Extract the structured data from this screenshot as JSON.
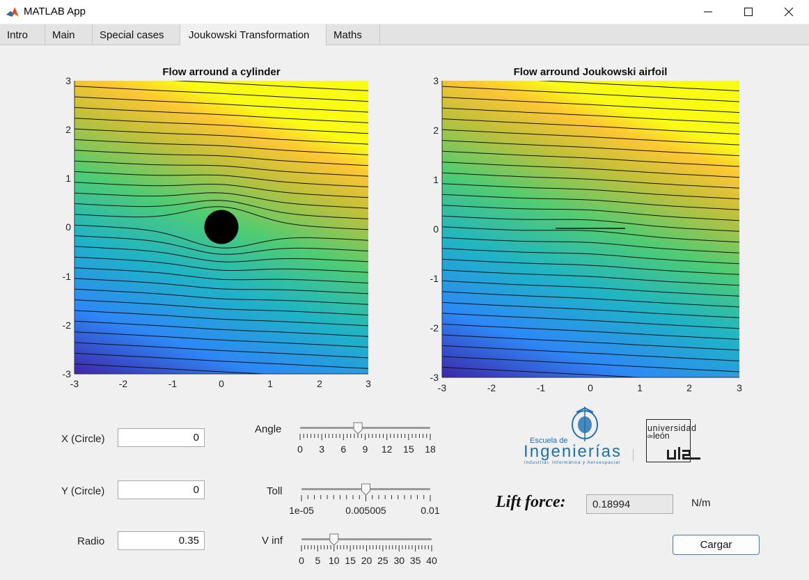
{
  "window": {
    "title": "MATLAB App"
  },
  "tabs": [
    "Intro",
    "Main",
    "Special cases",
    "Joukowski Transformation",
    "Maths"
  ],
  "active_tab": "Joukowski Transformation",
  "plot_left": {
    "title": "Flow arround a cylinder",
    "xticks": [
      "-3",
      "-2",
      "-1",
      "0",
      "1",
      "2",
      "3"
    ],
    "yticks": [
      "3",
      "2",
      "1",
      "0",
      "-1",
      "-2",
      "-3"
    ],
    "xlim": [
      -3,
      3
    ],
    "ylim": [
      -3,
      3
    ],
    "colormap": [
      "#3d26a8",
      "#2e87f7",
      "#1fb4c6",
      "#50cc72",
      "#c4c03a",
      "#fec634",
      "#f9fb15"
    ],
    "obstacle": {
      "shape": "circle",
      "x": 0,
      "y": 0,
      "r": 0.35,
      "color": "#000000"
    }
  },
  "plot_right": {
    "title": "Flow arround Joukowski airfoil",
    "xticks": [
      "-3",
      "-2",
      "-1",
      "0",
      "1",
      "2",
      "3"
    ],
    "yticks": [
      "3",
      "2",
      "1",
      "0",
      "-1",
      "-2",
      "-3"
    ],
    "xlim": [
      -3,
      3
    ],
    "ylim": [
      -3,
      3
    ],
    "colormap": [
      "#3d26a8",
      "#2e87f7",
      "#1fb4c6",
      "#50cc72",
      "#c4c03a",
      "#fec634",
      "#f9fb15"
    ],
    "obstacle": {
      "shape": "flat-plate",
      "x_from": -0.7,
      "x_to": 0.7,
      "y": 0
    }
  },
  "inputs": {
    "x_circle": {
      "label": "X (Circle)",
      "value": "0"
    },
    "y_circle": {
      "label": "Y (Circle)",
      "value": "0"
    },
    "radio": {
      "label": "Radio",
      "value": "0.35"
    }
  },
  "sliders": {
    "angle": {
      "label": "Angle",
      "min": 0,
      "max": 18,
      "value": 8,
      "tick_labels": [
        "0",
        "3",
        "6",
        "9",
        "12",
        "15",
        "18"
      ]
    },
    "toll": {
      "label": "Toll",
      "min": 1e-05,
      "max": 0.01,
      "value": 0.005005,
      "tick_labels": [
        "1e-05",
        "0.005005",
        "0.01"
      ]
    },
    "v_inf": {
      "label": "V inf",
      "min": 0,
      "max": 40,
      "value": 10,
      "tick_labels": [
        "0",
        "5",
        "10",
        "15",
        "20",
        "25",
        "30",
        "35",
        "40"
      ]
    }
  },
  "logos": {
    "escuela": {
      "line1": "Escuela de",
      "line2": "Ingenierías",
      "line3": "Industrial, Informática y Aeroespacial",
      "color": "#1e6fb0"
    },
    "universidad": {
      "line1": "universidad",
      "line2": "león",
      "prefix": "de"
    }
  },
  "lift": {
    "label": "Lift force:",
    "value": "0.18994",
    "unit": "N/m"
  },
  "button": {
    "label": "Cargar"
  }
}
